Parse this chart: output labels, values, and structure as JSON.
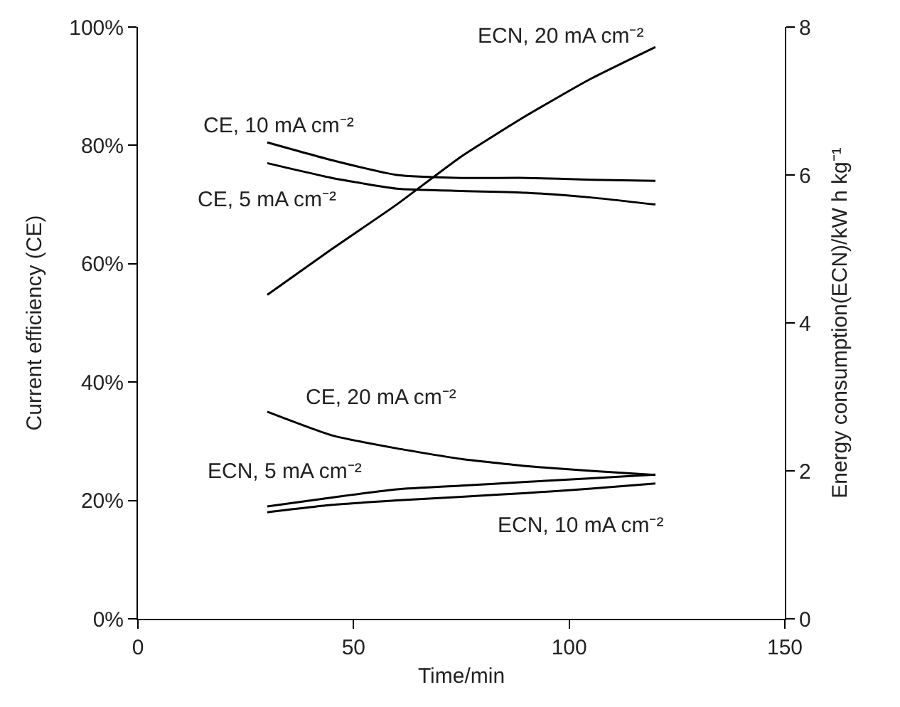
{
  "chart_data": {
    "type": "line",
    "xlabel": "Time/min",
    "ylabel": "Current efficiency (CE)",
    "y2label": "Energy consumption(ECN)/kW h kg⁻¹",
    "x": [
      30,
      45,
      60,
      75,
      90,
      105,
      120
    ],
    "series": [
      {
        "name": "ECN, 20 mA cm⁻²",
        "color": "#000000",
        "axis": "y2",
        "values": [
          4.38,
          5.0,
          5.6,
          6.25,
          6.8,
          7.3,
          7.73
        ]
      },
      {
        "name": "CE, 10 mA cm⁻²",
        "color": "#000000",
        "values": [
          80.5,
          77.5,
          75,
          74.5,
          74.5,
          74.2,
          74
        ]
      },
      {
        "name": "CE, 5 mA cm⁻²",
        "color": "#000000",
        "values": [
          77,
          74.5,
          72.7,
          72.3,
          72,
          71.2,
          70
        ]
      },
      {
        "name": "CE, 20 mA cm⁻²",
        "color": "#000000",
        "values": [
          35,
          31,
          28.8,
          27,
          25.8,
          25,
          24.3
        ]
      },
      {
        "name": "ECN, 5 mA cm⁻²",
        "color": "#000000",
        "axis": "y2",
        "values": [
          1.52,
          1.64,
          1.75,
          1.8,
          1.85,
          1.9,
          1.95
        ]
      },
      {
        "name": "ECN, 10 mA cm⁻²",
        "color": "#000000",
        "axis": "y2",
        "values": [
          1.44,
          1.54,
          1.6,
          1.65,
          1.7,
          1.76,
          1.83
        ]
      }
    ],
    "xlim": [
      0,
      150
    ],
    "xticks": [
      0,
      50,
      100,
      150
    ],
    "ylim": [
      0,
      100
    ],
    "yticks": [
      {
        "value": 0,
        "label": "0%"
      },
      {
        "value": 20,
        "label": "20%"
      },
      {
        "value": 40,
        "label": "40%"
      },
      {
        "value": 60,
        "label": "60%"
      },
      {
        "value": 80,
        "label": "80%"
      },
      {
        "value": 100,
        "label": "100%"
      }
    ],
    "y2lim": [
      0,
      8
    ],
    "y2ticks": [
      0,
      2,
      4,
      6,
      8
    ],
    "legend": false,
    "marker": "none",
    "line_style": "solid"
  }
}
